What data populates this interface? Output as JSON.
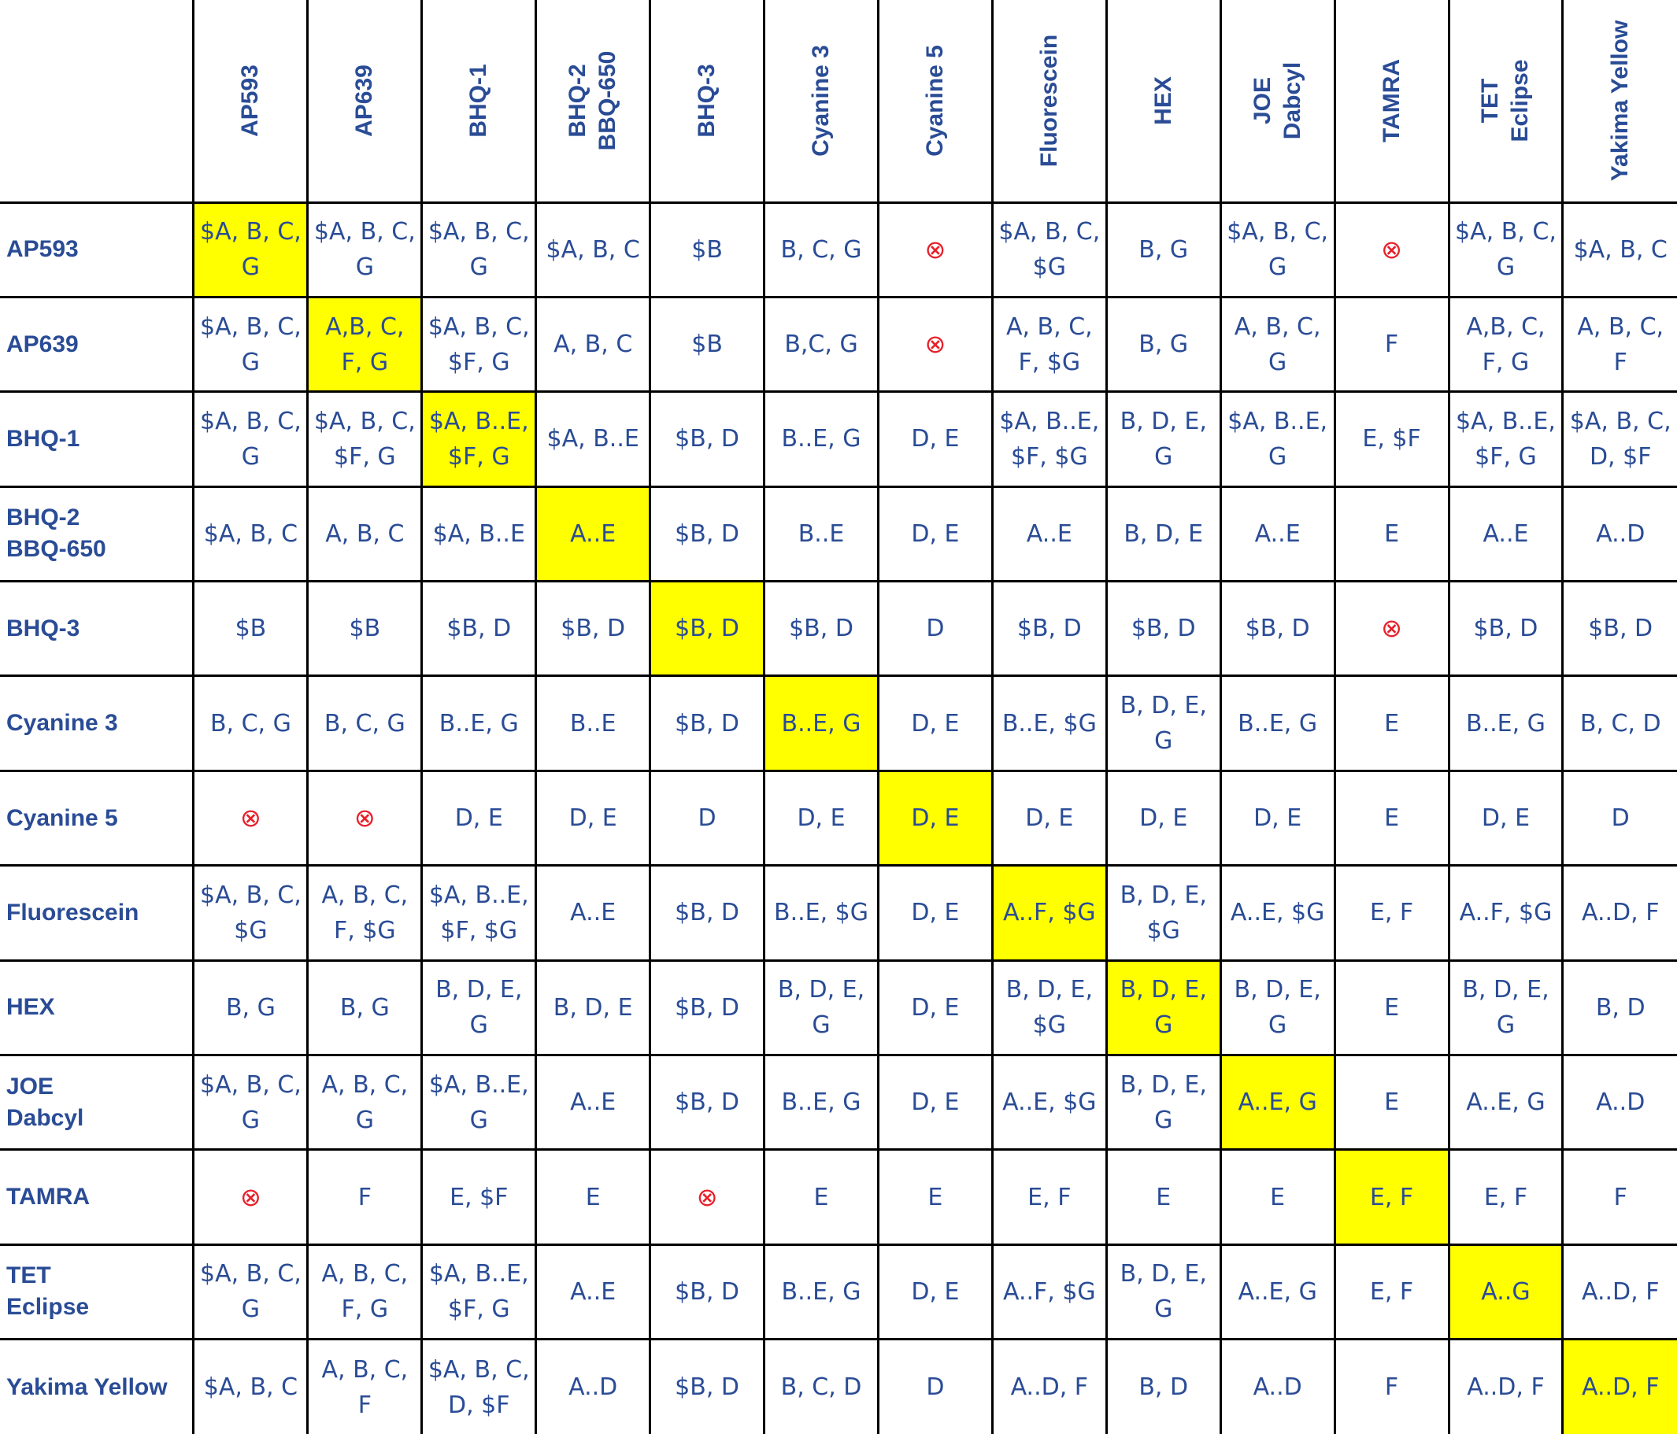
{
  "columns": [
    "AP593",
    "AP639",
    "BHQ-1",
    "BHQ-2\nBBQ-650",
    "BHQ-3",
    "Cyanine 3",
    "Cyanine 5",
    "Fluorescein",
    "HEX",
    "JOE\nDabcyl",
    "TAMRA",
    "TET\nEclipse",
    "Yakima Yellow"
  ],
  "rows": [
    {
      "label": "AP593",
      "cells": [
        "$A, B, C,\nG",
        "$A, B, C,\nG",
        "$A, B, C,\nG",
        "$A, B, C",
        "$B",
        "B, C, G",
        "⊗",
        "$A, B, C,\n$G",
        "B, G",
        "$A, B, C,\nG",
        "⊗",
        "$A, B, C,\nG",
        "$A, B, C"
      ]
    },
    {
      "label": "AP639",
      "cells": [
        "$A, B, C,\nG",
        "A,B, C,\nF, G",
        "$A, B, C,\n$F, G",
        "A, B, C",
        "$B",
        "B,C, G",
        "⊗",
        "A, B, C,\nF,  $G",
        "B, G",
        "A, B, C,\nG",
        "F",
        "A,B, C,\nF, G",
        "A, B, C,\nF"
      ]
    },
    {
      "label": "BHQ-1",
      "cells": [
        "$A, B, C,\nG",
        "$A, B, C,\n$F, G",
        "$A, B..E,\n$F, G",
        "$A, B..E",
        "$B, D",
        "B..E, G",
        "D, E",
        "$A, B..E,\n$F, $G",
        "B, D, E,\nG",
        "$A, B..E,\nG",
        "E, $F",
        "$A, B..E,\n$F, G",
        "$A, B, C,\nD, $F"
      ]
    },
    {
      "label": "BHQ-2\nBBQ-650",
      "cells": [
        "$A, B, C",
        "A, B, C",
        "$A, B..E",
        "A..E",
        "$B, D",
        "B..E",
        "D, E",
        "A..E",
        "B, D, E",
        "A..E",
        "E",
        "A..E",
        "A..D"
      ]
    },
    {
      "label": "BHQ-3",
      "cells": [
        "$B",
        "$B",
        "$B, D",
        "$B, D",
        "$B, D",
        "$B, D",
        "D",
        "$B, D",
        "$B, D",
        "$B, D",
        "⊗",
        "$B, D",
        "$B, D"
      ]
    },
    {
      "label": "Cyanine 3",
      "cells": [
        "B, C, G",
        "B, C, G",
        "B..E, G",
        "B..E",
        "$B, D",
        "B..E, G",
        "D, E",
        "B..E, $G",
        "B, D, E,\nG",
        "B..E, G",
        "E",
        "B..E, G",
        "B, C, D"
      ]
    },
    {
      "label": "Cyanine 5",
      "cells": [
        "⊗",
        "⊗",
        "D, E",
        "D, E",
        "D",
        "D, E",
        "D, E",
        "D, E",
        "D, E",
        "D, E",
        "E",
        "D, E",
        "D"
      ]
    },
    {
      "label": "Fluorescein",
      "cells": [
        "$A, B, C,\n$G",
        "A, B, C,\nF,  $G",
        "$A, B..E,\n$F, $G",
        "A..E",
        "$B, D",
        "B..E, $G",
        "D, E",
        "A..F, $G",
        "B, D, E,\n$G",
        "A..E, $G",
        "E, F",
        "A..F, $G",
        "A..D, F"
      ]
    },
    {
      "label": "HEX",
      "cells": [
        "B, G",
        "B, G",
        "B, D, E,\nG",
        "B, D, E",
        "$B, D",
        "B, D, E,\nG",
        "D, E",
        "B, D, E,\n$G",
        "B, D, E,\nG",
        "B, D, E,\nG",
        "E",
        "B, D, E,\nG",
        "B, D"
      ]
    },
    {
      "label": "JOE\nDabcyl",
      "cells": [
        "$A, B, C,\nG",
        "A, B, C,\nG",
        "$A, B..E,\nG",
        "A..E",
        "$B, D",
        "B..E, G",
        "D, E",
        "A..E, $G",
        "B, D, E,\nG",
        "A..E, G",
        "E",
        "A..E, G",
        "A..D"
      ]
    },
    {
      "label": "TAMRA",
      "cells": [
        "⊗",
        "F",
        "E, $F",
        "E",
        "⊗",
        "E",
        "E",
        "E, F",
        "E",
        "E",
        "E, F",
        "E, F",
        "F"
      ]
    },
    {
      "label": "TET\nEclipse",
      "cells": [
        "$A, B, C,\nG",
        "A, B, C,\nF, G",
        "$A, B..E,\n$F, G",
        "A..E",
        "$B, D",
        "B..E, G",
        "D, E",
        "A..F, $G",
        "B, D, E,\nG",
        "A..E, G",
        "E, F",
        "A..G",
        "A..D, F"
      ]
    },
    {
      "label": "Yakima Yellow",
      "cells": [
        "$A, B, C",
        "A, B, C,\nF",
        "$A, B, C,\nD, $F",
        "A..D",
        "$B, D",
        "B, C, D",
        "D",
        "A..D, F",
        "B, D",
        "A..D",
        "F",
        "A..D, F",
        "A..D, F"
      ]
    }
  ],
  "colors": {
    "text": "#2a4c96",
    "highlight": "#ffff00",
    "incompatible_symbol": "#e8202a"
  },
  "incompatible_symbol": "⊗"
}
